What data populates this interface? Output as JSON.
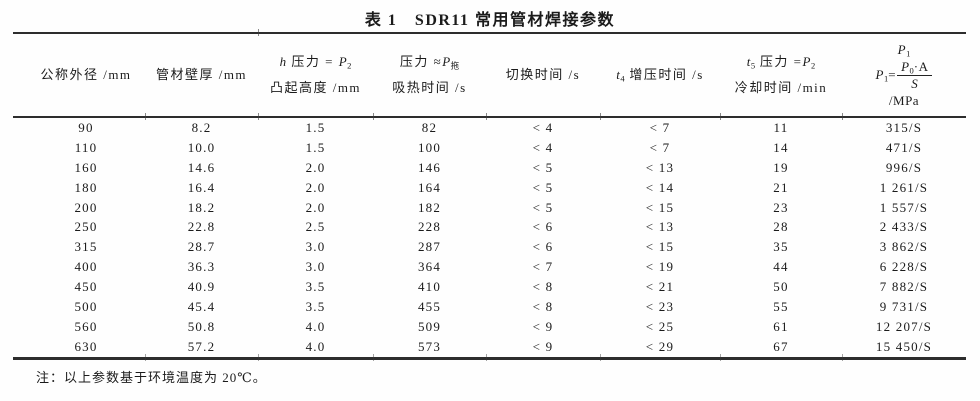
{
  "document": {
    "title": "表 1　SDR11 常用管材焊接参数",
    "note": "注：以上参数基于环境温度为 20℃。"
  },
  "table": {
    "headers": {
      "col1": "公称外径 /mm",
      "col2": "管材壁厚 /mm",
      "col3": {
        "var": "h",
        "mid": " 压力 = ",
        "p": "P",
        "psub": "2",
        "line2": "凸起高度 /mm"
      },
      "col4": {
        "pre": "压力 ≈",
        "p": "P",
        "psub": "拖",
        "line2": "吸热时间 /s"
      },
      "col5": "切换时间 /s",
      "col6": {
        "var": "t",
        "vsub": "4",
        "rest": " 增压时间 /s"
      },
      "col7": {
        "var": "t",
        "vsub": "5",
        "mid": " 压力 =",
        "p": "P",
        "psub": "2",
        "line2": "冷却时间 /min"
      },
      "col8": {
        "top_p": "P",
        "top_sub": "1",
        "lhs_p": "P",
        "lhs_sub": "1",
        "eq": "=",
        "num_p": "P",
        "num_sub": "0",
        "num_tail": "·A",
        "den": "S",
        "unit": "/MPa"
      }
    },
    "rows": [
      [
        "90",
        "8.2",
        "1.5",
        "82",
        "< 4",
        "< 7",
        "11",
        "315/S"
      ],
      [
        "110",
        "10.0",
        "1.5",
        "100",
        "< 4",
        "< 7",
        "14",
        "471/S"
      ],
      [
        "160",
        "14.6",
        "2.0",
        "146",
        "< 5",
        "< 13",
        "19",
        "996/S"
      ],
      [
        "180",
        "16.4",
        "2.0",
        "164",
        "< 5",
        "< 14",
        "21",
        "1 261/S"
      ],
      [
        "200",
        "18.2",
        "2.0",
        "182",
        "< 5",
        "< 15",
        "23",
        "1 557/S"
      ],
      [
        "250",
        "22.8",
        "2.5",
        "228",
        "< 6",
        "< 13",
        "28",
        "2 433/S"
      ],
      [
        "315",
        "28.7",
        "3.0",
        "287",
        "< 6",
        "< 15",
        "35",
        "3 862/S"
      ],
      [
        "400",
        "36.3",
        "3.0",
        "364",
        "< 7",
        "< 19",
        "44",
        "6 228/S"
      ],
      [
        "450",
        "40.9",
        "3.5",
        "410",
        "< 8",
        "< 21",
        "50",
        "7 882/S"
      ],
      [
        "500",
        "45.4",
        "3.5",
        "455",
        "< 8",
        "< 23",
        "55",
        "9 731/S"
      ],
      [
        "560",
        "50.8",
        "4.0",
        "509",
        "< 9",
        "< 25",
        "61",
        "12 207/S"
      ],
      [
        "630",
        "57.2",
        "4.0",
        "573",
        "< 9",
        "< 29",
        "67",
        "15 450/S"
      ]
    ]
  },
  "colors": {
    "background": "#fefefe",
    "text": "#1b1b1b",
    "rule": "#2d2d2d"
  }
}
